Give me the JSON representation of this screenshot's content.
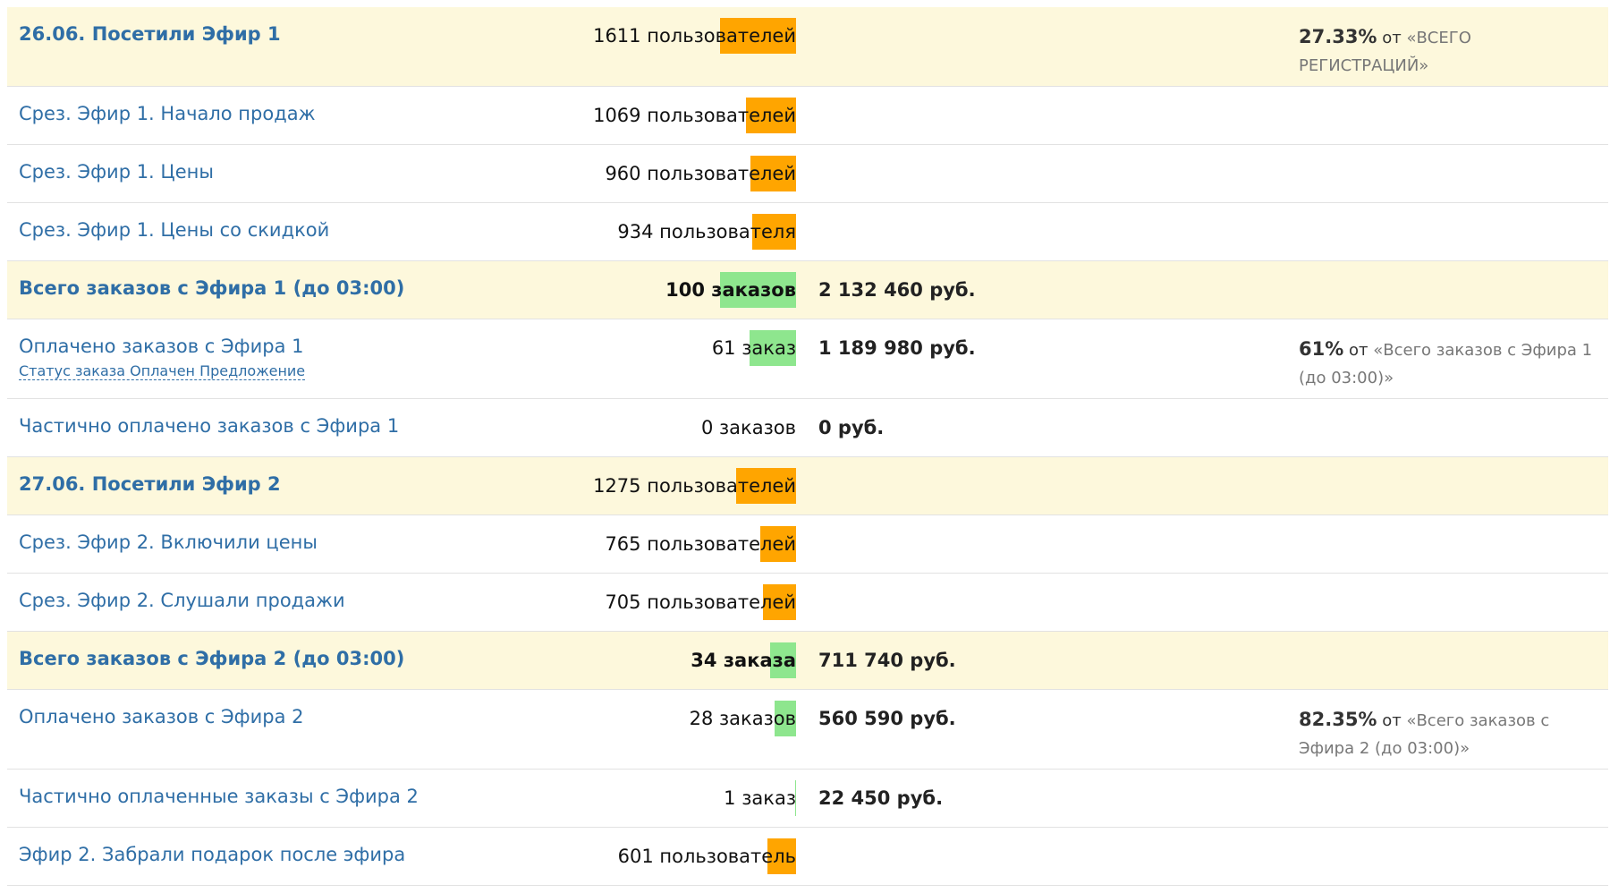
{
  "table": {
    "rows": [
      {
        "label": "26.06. Посетили Эфир 1",
        "highlight": true,
        "count": 1611,
        "unit": "пользователей",
        "color": "#ffa500",
        "share": "27.33%",
        "share_prefix": "от",
        "share_base": "«ВСЕГО РЕГИСТРАЦИЙ»"
      },
      {
        "label": "Срез. Эфир 1. Начало продаж",
        "count": 1069,
        "unit": "пользователей",
        "color": "#ffa500"
      },
      {
        "label": "Срез. Эфир 1. Цены",
        "count": 960,
        "unit": "пользователей",
        "color": "#ffa500"
      },
      {
        "label": "Срез. Эфир 1. Цены со скидкой",
        "count": 934,
        "unit": "пользователя",
        "color": "#ffa500"
      },
      {
        "label": "Всего заказов с Эфира 1 (до 03:00)",
        "highlight": true,
        "count": 100,
        "unit": "заказов",
        "color": "#8ee68e",
        "amount": "2 132 460 руб."
      },
      {
        "label": "Оплачено заказов с Эфира 1",
        "sublink": "Статус заказа Оплачен Предложение",
        "count": 61,
        "unit": "заказ",
        "color": "#8ee68e",
        "amount": "1 189 980 руб.",
        "share": "61%",
        "share_prefix": "от",
        "share_base": "«Всего заказов с Эфира 1 (до 03:00)»"
      },
      {
        "label": "Частично оплачено заказов с Эфира 1",
        "count": 0,
        "unit": "заказов",
        "color": "#8ee68e",
        "amount": "0 руб."
      },
      {
        "label": "27.06. Посетили Эфир 2",
        "highlight": true,
        "count": 1275,
        "unit": "пользователей",
        "color": "#ffa500"
      },
      {
        "label": "Срез. Эфир 2. Включили цены",
        "count": 765,
        "unit": "пользователей",
        "color": "#ffa500"
      },
      {
        "label": "Срез. Эфир 2. Слушали продажи",
        "count": 705,
        "unit": "пользователей",
        "color": "#ffa500"
      },
      {
        "label": "Всего заказов с Эфира 2 (до 03:00)",
        "highlight": true,
        "count": 34,
        "unit": "заказа",
        "color": "#8ee68e",
        "amount": "711 740 руб."
      },
      {
        "label": "Оплачено заказов с Эфира 2",
        "count": 28,
        "unit": "заказов",
        "color": "#8ee68e",
        "amount": "560 590 руб.",
        "share": "82.35%",
        "share_prefix": "от",
        "share_base": "«Всего заказов с Эфира 2 (до 03:00)»"
      },
      {
        "label": "Частично оплаченные заказы с Эфира 2",
        "count": 1,
        "unit": "заказ",
        "color": "#8ee68e",
        "amount": "22 450 руб."
      },
      {
        "label": "Эфир 2. Забрали подарок после эфира",
        "count": 601,
        "unit": "пользователь",
        "color": "#ffa500"
      }
    ]
  }
}
